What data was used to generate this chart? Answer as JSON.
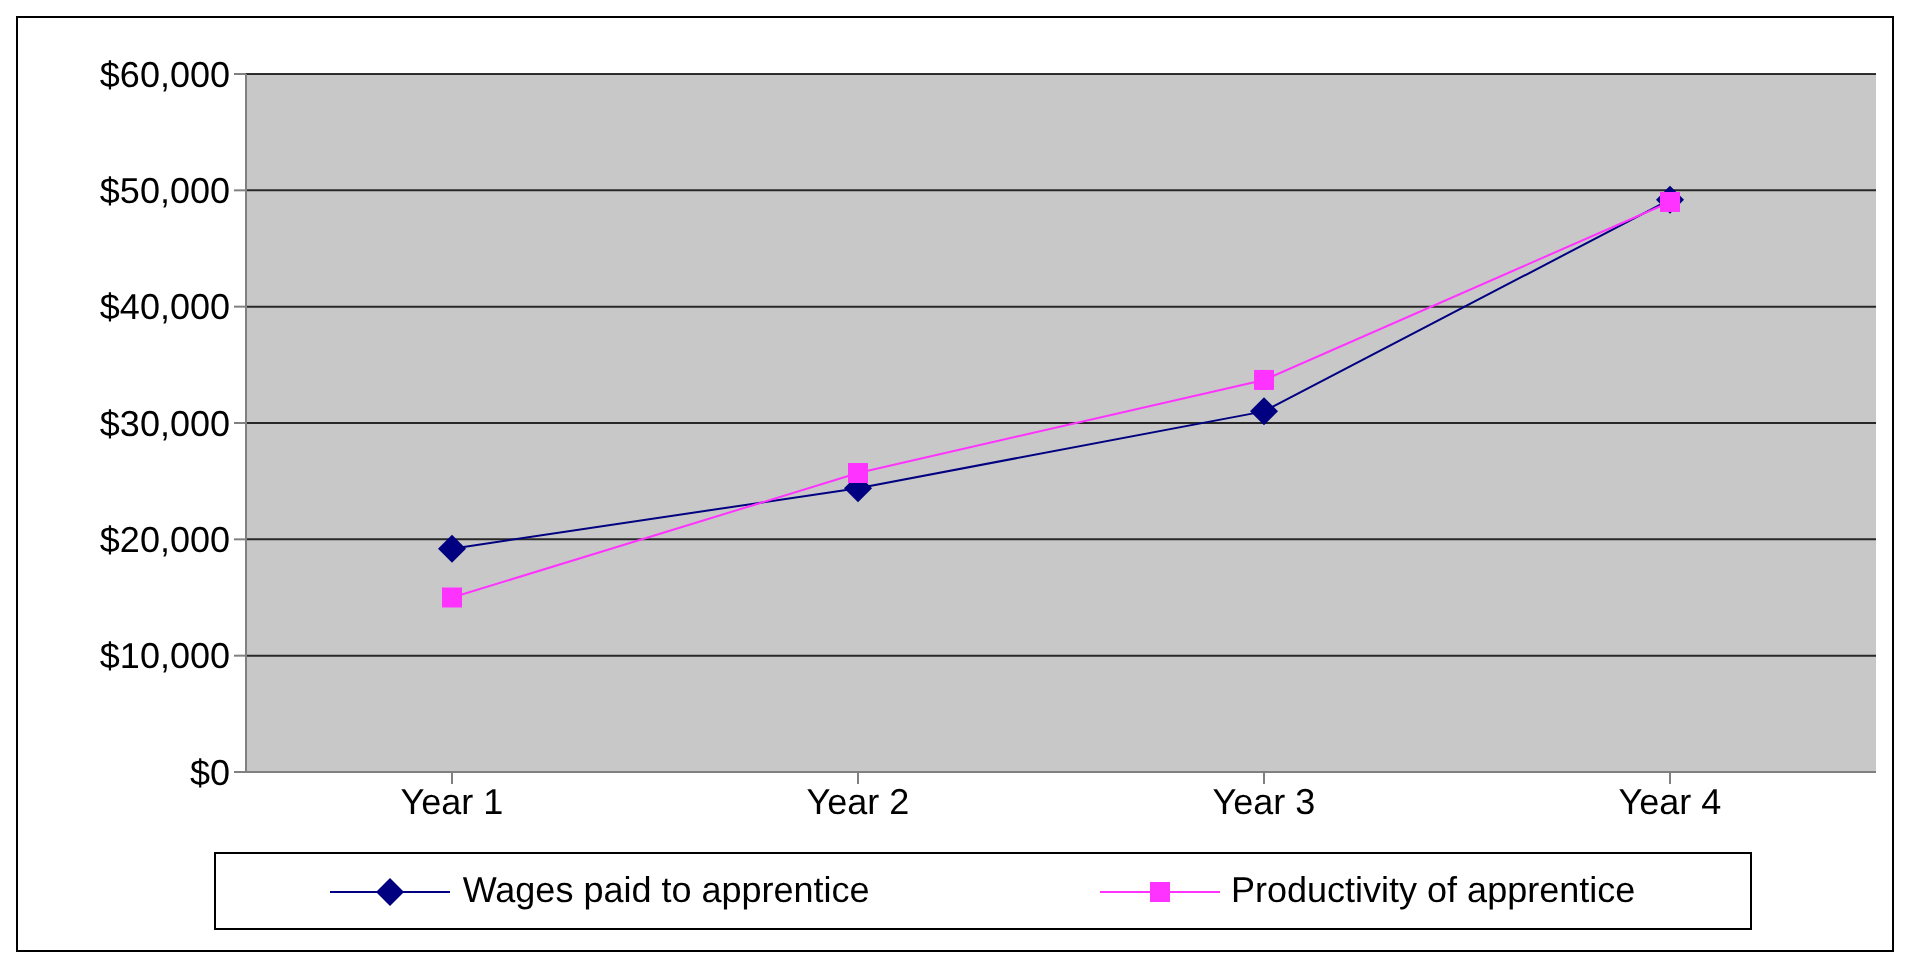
{
  "chart_data": {
    "type": "line",
    "categories": [
      "Year 1",
      "Year 2",
      "Year 3",
      "Year 4"
    ],
    "series": [
      {
        "name": "Wages paid to apprentice",
        "color": "#000080",
        "marker": "diamond",
        "values": [
          19200,
          24400,
          31000,
          49200
        ]
      },
      {
        "name": "Productivity of apprentice",
        "color": "#ff33ff",
        "marker": "square",
        "values": [
          15000,
          25700,
          33700,
          49000
        ]
      }
    ],
    "ylim": [
      0,
      60000
    ],
    "yticks": [
      {
        "value": 0,
        "label": "$0"
      },
      {
        "value": 10000,
        "label": "$10,000"
      },
      {
        "value": 20000,
        "label": "$20,000"
      },
      {
        "value": 30000,
        "label": "$30,000"
      },
      {
        "value": 40000,
        "label": "$40,000"
      },
      {
        "value": 50000,
        "label": "$50,000"
      },
      {
        "value": 60000,
        "label": "$60,000"
      }
    ],
    "grid": "y",
    "legend": "bottom"
  }
}
